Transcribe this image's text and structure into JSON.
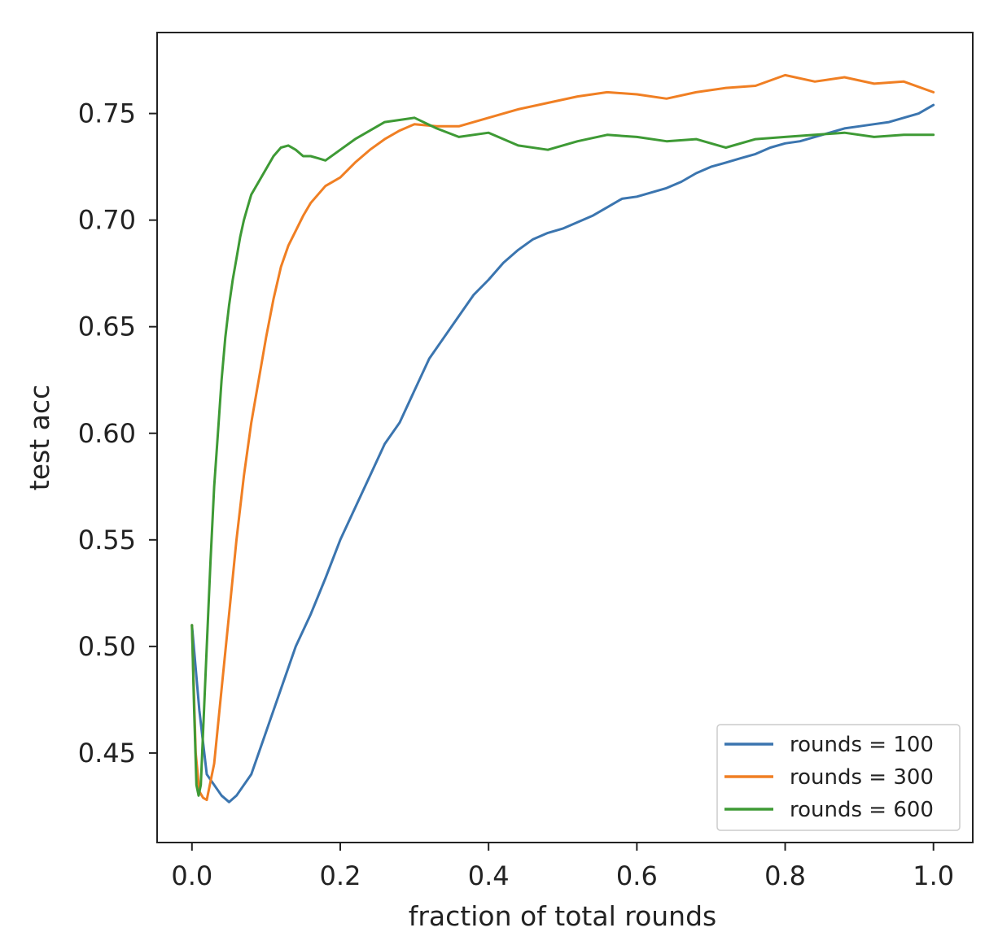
{
  "chart_data": {
    "type": "line",
    "title": "",
    "xlabel": "fraction of total rounds",
    "ylabel": "test acc",
    "xlim": [
      -0.047,
      1.053
    ],
    "ylim": [
      0.408,
      0.788
    ],
    "xticks": [
      0.0,
      0.2,
      0.4,
      0.6,
      0.8,
      1.0
    ],
    "xtick_labels": [
      "0.0",
      "0.2",
      "0.4",
      "0.6",
      "0.8",
      "1.0"
    ],
    "yticks": [
      0.45,
      0.5,
      0.55,
      0.6,
      0.65,
      0.7,
      0.75
    ],
    "ytick_labels": [
      "0.45",
      "0.50",
      "0.55",
      "0.60",
      "0.65",
      "0.70",
      "0.75"
    ],
    "grid": false,
    "legend_position": "lower right",
    "series": [
      {
        "name": "rounds = 100",
        "color": "#3b75af",
        "x": [
          0.0,
          0.01,
          0.02,
          0.03,
          0.04,
          0.05,
          0.06,
          0.07,
          0.08,
          0.1,
          0.12,
          0.14,
          0.16,
          0.18,
          0.2,
          0.22,
          0.24,
          0.26,
          0.28,
          0.3,
          0.32,
          0.34,
          0.36,
          0.38,
          0.4,
          0.42,
          0.44,
          0.46,
          0.48,
          0.5,
          0.52,
          0.54,
          0.56,
          0.58,
          0.6,
          0.62,
          0.64,
          0.66,
          0.68,
          0.7,
          0.72,
          0.74,
          0.76,
          0.78,
          0.8,
          0.82,
          0.84,
          0.86,
          0.88,
          0.9,
          0.92,
          0.94,
          0.96,
          0.98,
          1.0
        ],
        "y": [
          0.51,
          0.47,
          0.44,
          0.435,
          0.43,
          0.427,
          0.43,
          0.435,
          0.44,
          0.46,
          0.48,
          0.5,
          0.515,
          0.532,
          0.55,
          0.565,
          0.58,
          0.595,
          0.605,
          0.62,
          0.635,
          0.645,
          0.655,
          0.665,
          0.672,
          0.68,
          0.686,
          0.691,
          0.694,
          0.696,
          0.699,
          0.702,
          0.706,
          0.71,
          0.711,
          0.713,
          0.715,
          0.718,
          0.722,
          0.725,
          0.727,
          0.729,
          0.731,
          0.734,
          0.736,
          0.737,
          0.739,
          0.741,
          0.743,
          0.744,
          0.745,
          0.746,
          0.748,
          0.75,
          0.754
        ]
      },
      {
        "name": "rounds = 300",
        "color": "#f07f23",
        "x": [
          0.0,
          0.005,
          0.01,
          0.015,
          0.02,
          0.03,
          0.04,
          0.05,
          0.06,
          0.07,
          0.08,
          0.09,
          0.1,
          0.11,
          0.12,
          0.13,
          0.14,
          0.15,
          0.16,
          0.17,
          0.18,
          0.2,
          0.22,
          0.24,
          0.26,
          0.28,
          0.3,
          0.33,
          0.36,
          0.4,
          0.44,
          0.48,
          0.52,
          0.56,
          0.6,
          0.64,
          0.68,
          0.72,
          0.76,
          0.8,
          0.84,
          0.88,
          0.92,
          0.96,
          1.0
        ],
        "y": [
          0.51,
          0.45,
          0.432,
          0.429,
          0.428,
          0.445,
          0.48,
          0.515,
          0.55,
          0.58,
          0.605,
          0.625,
          0.645,
          0.663,
          0.678,
          0.688,
          0.695,
          0.702,
          0.708,
          0.712,
          0.716,
          0.72,
          0.727,
          0.733,
          0.738,
          0.742,
          0.745,
          0.744,
          0.744,
          0.748,
          0.752,
          0.755,
          0.758,
          0.76,
          0.759,
          0.757,
          0.76,
          0.762,
          0.763,
          0.768,
          0.765,
          0.767,
          0.764,
          0.765,
          0.76
        ]
      },
      {
        "name": "rounds = 600",
        "color": "#3e9a35",
        "x": [
          0.0,
          0.003,
          0.006,
          0.009,
          0.012,
          0.015,
          0.02,
          0.025,
          0.03,
          0.035,
          0.04,
          0.045,
          0.05,
          0.055,
          0.06,
          0.065,
          0.07,
          0.075,
          0.08,
          0.09,
          0.1,
          0.11,
          0.12,
          0.13,
          0.14,
          0.15,
          0.16,
          0.17,
          0.18,
          0.2,
          0.22,
          0.24,
          0.26,
          0.28,
          0.3,
          0.33,
          0.36,
          0.4,
          0.44,
          0.48,
          0.52,
          0.56,
          0.6,
          0.64,
          0.68,
          0.72,
          0.76,
          0.8,
          0.84,
          0.88,
          0.92,
          0.96,
          1.0
        ],
        "y": [
          0.51,
          0.47,
          0.435,
          0.43,
          0.435,
          0.46,
          0.5,
          0.54,
          0.575,
          0.6,
          0.625,
          0.645,
          0.66,
          0.672,
          0.682,
          0.692,
          0.7,
          0.706,
          0.712,
          0.718,
          0.724,
          0.73,
          0.734,
          0.735,
          0.733,
          0.73,
          0.73,
          0.729,
          0.728,
          0.733,
          0.738,
          0.742,
          0.746,
          0.747,
          0.748,
          0.743,
          0.739,
          0.741,
          0.735,
          0.733,
          0.737,
          0.74,
          0.739,
          0.737,
          0.738,
          0.734,
          0.738,
          0.739,
          0.74,
          0.741,
          0.739,
          0.74,
          0.74
        ]
      }
    ]
  }
}
